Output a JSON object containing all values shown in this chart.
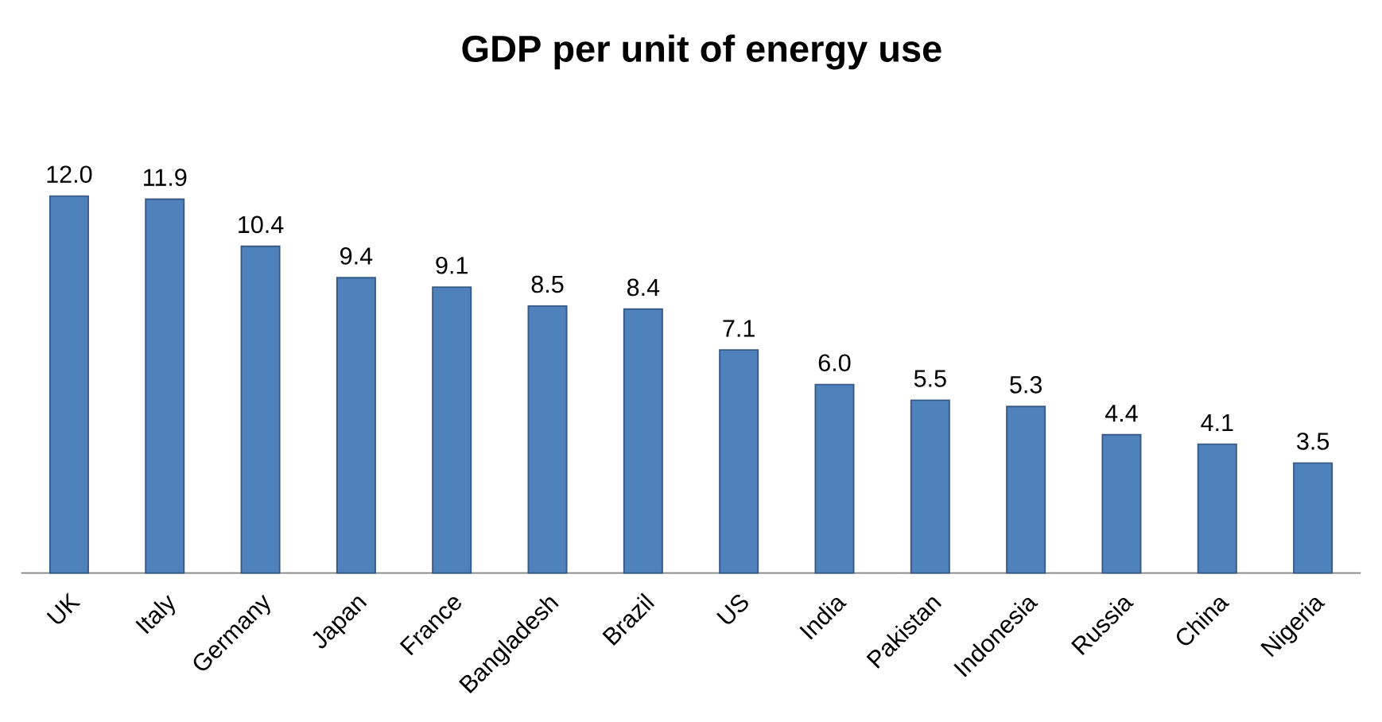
{
  "chart_data": {
    "type": "bar",
    "title": "GDP per unit of energy use",
    "categories": [
      "UK",
      "Italy",
      "Germany",
      "Japan",
      "France",
      "Bangladesh",
      "Brazil",
      "US",
      "India",
      "Pakistan",
      "Indonesia",
      "Russia",
      "China",
      "Nigeria"
    ],
    "values": [
      12.0,
      11.9,
      10.4,
      9.4,
      9.1,
      8.5,
      8.4,
      7.1,
      6.0,
      5.5,
      5.3,
      4.4,
      4.1,
      3.5
    ],
    "value_labels": [
      "12.0",
      "11.9",
      "10.4",
      "9.4",
      "9.1",
      "8.5",
      "8.4",
      "7.1",
      "6.0",
      "5.5",
      "5.3",
      "4.4",
      "4.1",
      "3.5"
    ],
    "color": "#4f81bd",
    "tick_labels": "x"
  }
}
